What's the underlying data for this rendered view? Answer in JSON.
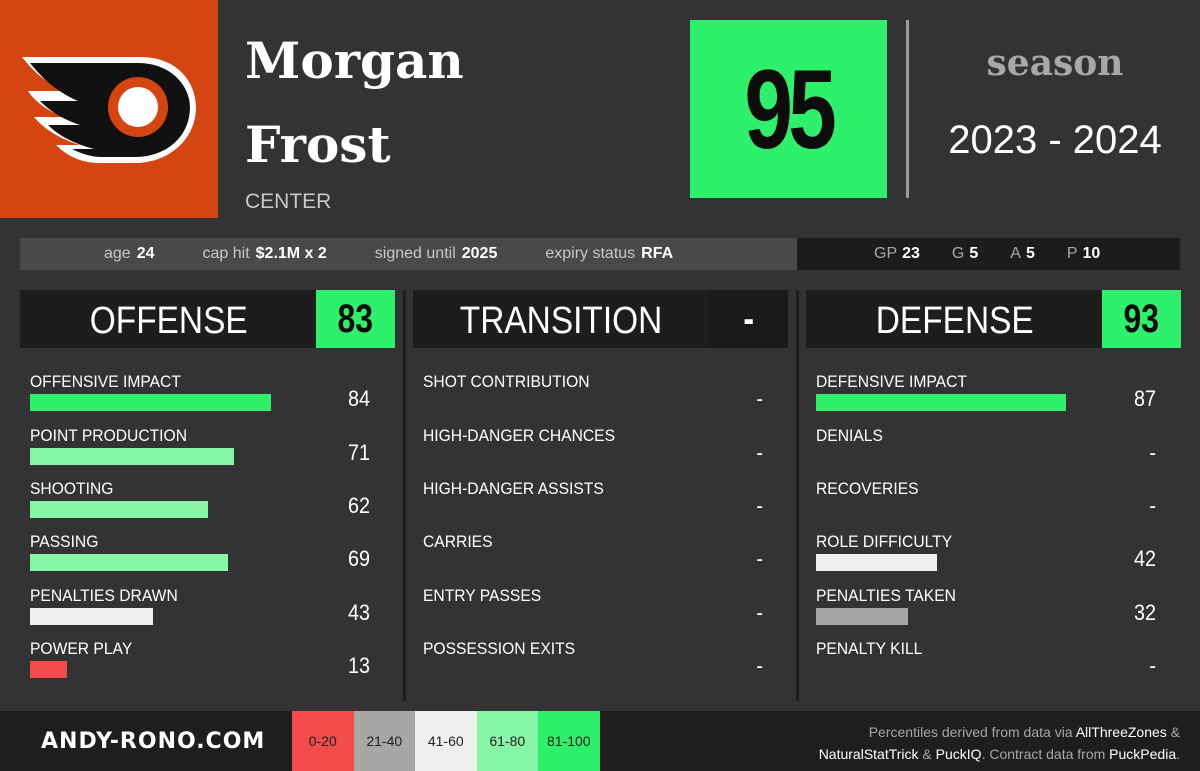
{
  "player": {
    "first_name": "Morgan",
    "last_name": "Frost",
    "position": "CENTER",
    "team_logo_icon": "philadelphia-flyers-logo-icon"
  },
  "overall": {
    "score": "95"
  },
  "season": {
    "label": "season",
    "value": "2023 - 2024"
  },
  "info": [
    {
      "label": "age",
      "value": "24"
    },
    {
      "label": "cap hit",
      "value": "$2.1M x 2"
    },
    {
      "label": "signed until",
      "value": "2025"
    },
    {
      "label": "expiry status",
      "value": "RFA"
    }
  ],
  "stats": [
    {
      "label": "GP",
      "value": "23"
    },
    {
      "label": "G",
      "value": "5"
    },
    {
      "label": "A",
      "value": "5"
    },
    {
      "label": "P",
      "value": "10"
    }
  ],
  "offense": {
    "title": "OFFENSE",
    "score": "83",
    "metrics": [
      {
        "label": "OFFENSIVE IMPACT",
        "value": "84",
        "percentile": 84,
        "color": "#2ff06a"
      },
      {
        "label": "POINT PRODUCTION",
        "value": "71",
        "percentile": 71,
        "color": "#86f5a6"
      },
      {
        "label": "SHOOTING",
        "value": "62",
        "percentile": 62,
        "color": "#86f5a6"
      },
      {
        "label": "PASSING",
        "value": "69",
        "percentile": 69,
        "color": "#86f5a6"
      },
      {
        "label": "PENALTIES DRAWN",
        "value": "43",
        "percentile": 43,
        "color": "#efefef"
      },
      {
        "label": "POWER PLAY",
        "value": "13",
        "percentile": 13,
        "color": "#f24b4b"
      }
    ]
  },
  "transition": {
    "title": "TRANSITION",
    "score": "-",
    "metrics": [
      {
        "label": "SHOT CONTRIBUTION",
        "value": "-"
      },
      {
        "label": "HIGH-DANGER CHANCES",
        "value": "-"
      },
      {
        "label": "HIGH-DANGER ASSISTS",
        "value": "-"
      },
      {
        "label": "CARRIES",
        "value": "-"
      },
      {
        "label": "ENTRY PASSES",
        "value": "-"
      },
      {
        "label": "POSSESSION EXITS",
        "value": "-"
      }
    ]
  },
  "defense": {
    "title": "DEFENSE",
    "score": "93",
    "metrics": [
      {
        "label": "DEFENSIVE IMPACT",
        "value": "87",
        "percentile": 87,
        "color": "#2ff06a"
      },
      {
        "label": "DENIALS",
        "value": "-"
      },
      {
        "label": "RECOVERIES",
        "value": "-"
      },
      {
        "label": "ROLE DIFFICULTY",
        "value": "42",
        "percentile": 42,
        "color": "#efefef"
      },
      {
        "label": "PENALTIES TAKEN",
        "value": "32",
        "percentile": 32,
        "color": "#a9a6a6"
      },
      {
        "label": "PENALTY KILL",
        "value": "-"
      }
    ]
  },
  "footer": {
    "site": "ANDY-RONO.COM",
    "legend": [
      {
        "label": "0-20",
        "color": "#f24b4b"
      },
      {
        "label": "21-40",
        "color": "#a9a6a6"
      },
      {
        "label": "41-60",
        "color": "#efefef"
      },
      {
        "label": "61-80",
        "color": "#86f5a6"
      },
      {
        "label": "81-100",
        "color": "#2ff06a"
      }
    ],
    "credits": {
      "text1": "Percentiles derived from data via",
      "source1": "AllThreeZones",
      "amp1": "&",
      "source2": "NaturalStatTrick",
      "amp2": "&",
      "source3": "PuckIQ",
      "text2": ". Contract data from",
      "source4": "PuckPedia",
      "end": "."
    }
  },
  "colors": {
    "accent": "#2ff06a",
    "background": "#333335",
    "logo_bg": "#d44511"
  }
}
